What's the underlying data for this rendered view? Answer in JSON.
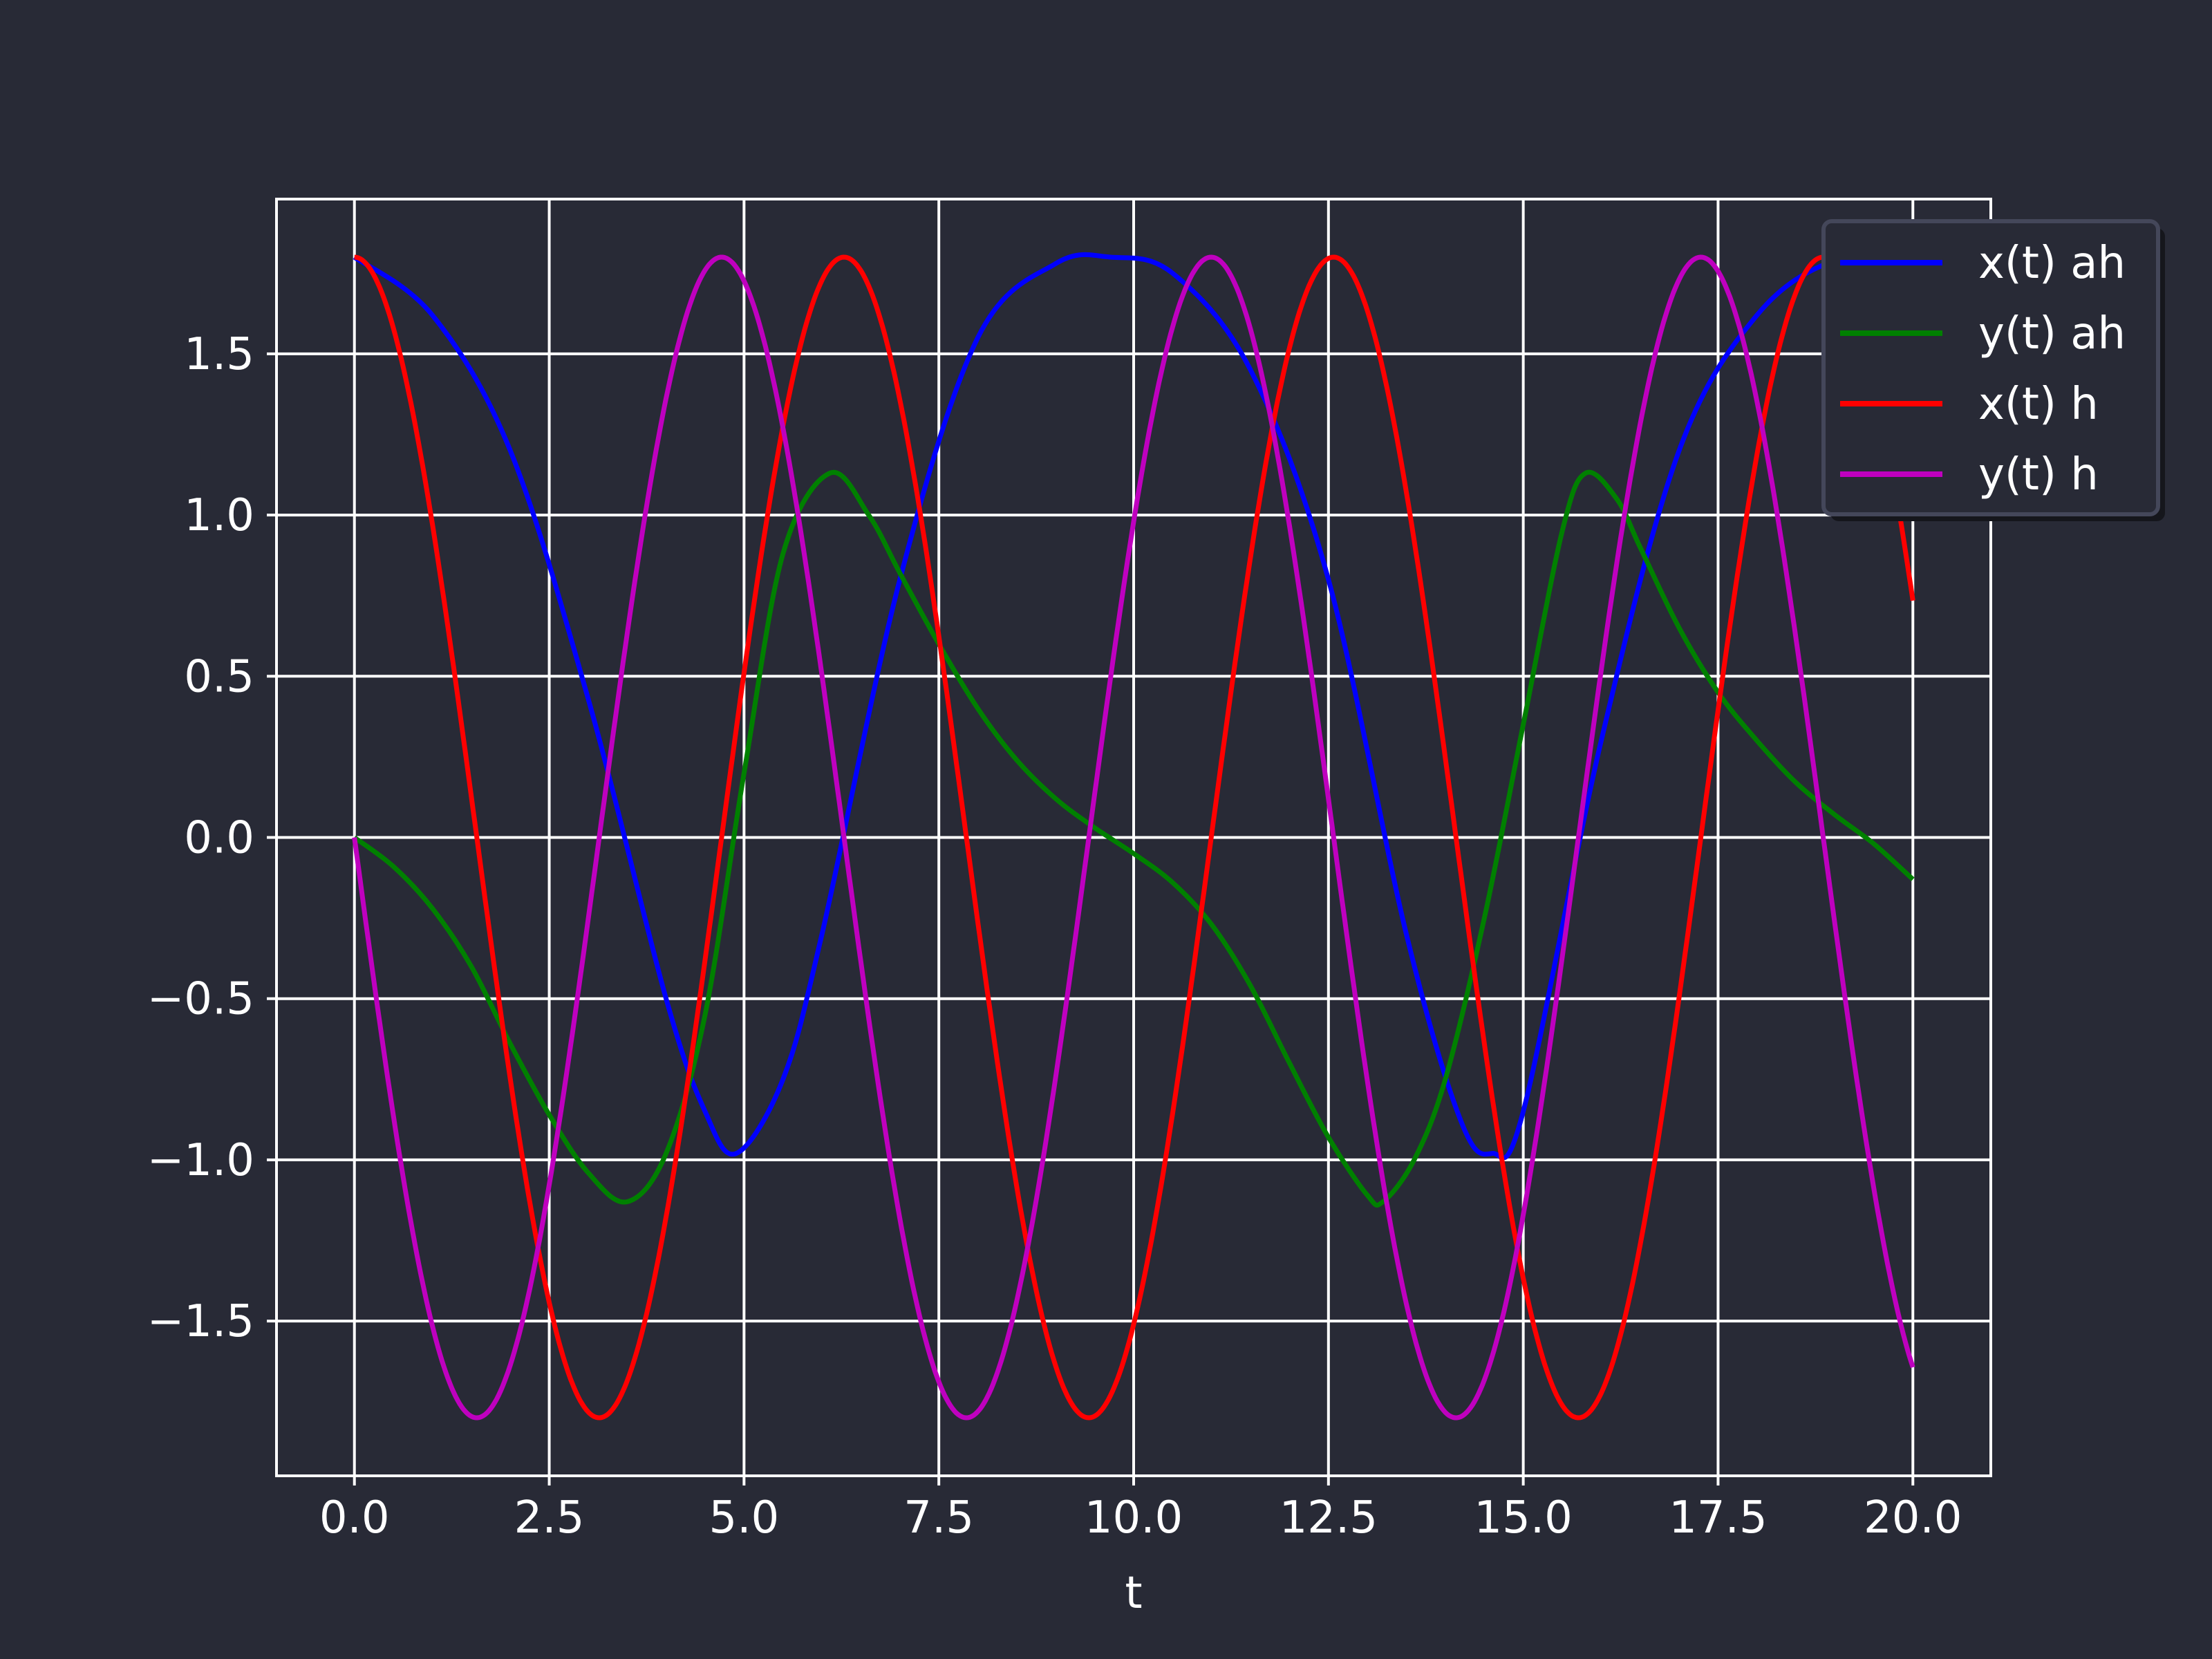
{
  "chart_data": {
    "type": "line",
    "title": "",
    "xlabel": "t",
    "ylabel": "",
    "xlim": [
      -1.0,
      21.0
    ],
    "ylim": [
      -1.98,
      1.98
    ],
    "grid": true,
    "legend_position": "top-right",
    "background_color": "#282a36",
    "axes_color": "#ffffff",
    "xticks": [
      0.0,
      2.5,
      5.0,
      7.5,
      10.0,
      12.5,
      15.0,
      17.5,
      20.0
    ],
    "xtick_labels": [
      "0.0",
      "2.5",
      "5.0",
      "7.5",
      "10.0",
      "12.5",
      "15.0",
      "17.5",
      "20.0"
    ],
    "yticks": [
      -1.5,
      -1.0,
      -0.5,
      0.0,
      0.5,
      1.0,
      1.5
    ],
    "ytick_labels": [
      "−1.5",
      "−1.0",
      "−0.5",
      "0.0",
      "0.5",
      "1.0",
      "1.5"
    ],
    "series": [
      {
        "name": "x(t) ah",
        "color": "#0000ff",
        "x": [
          0,
          1,
          2,
          3,
          4,
          4.5,
          4.9,
          5.5,
          6,
          7,
          8,
          9,
          9.7,
          10.5,
          11.5,
          12.5,
          13.5,
          14.2,
          14.6,
          15,
          16,
          17,
          18,
          19,
          20
        ],
        "y": [
          1.8,
          1.62,
          1.2,
          0.43,
          -0.5,
          -0.85,
          -0.98,
          -0.75,
          -0.3,
          0.8,
          1.55,
          1.78,
          1.8,
          1.75,
          1.45,
          0.8,
          -0.3,
          -0.88,
          -0.98,
          -0.85,
          0.3,
          1.2,
          1.62,
          1.79,
          1.8
        ]
      },
      {
        "name": "y(t) ah",
        "color": "#008000",
        "x": [
          0,
          0.5,
          1,
          1.5,
          2,
          2.5,
          3,
          3.5,
          4,
          4.5,
          5,
          5.5,
          6.1,
          6.6,
          7,
          7.5,
          8,
          8.5,
          9,
          9.5,
          10,
          10.5,
          11,
          11.5,
          12,
          12.5,
          13,
          13.2,
          13.6,
          14,
          14.5,
          15,
          15.5,
          15.8,
          16.2,
          16.5,
          17,
          17.5,
          18,
          18.5,
          19,
          19.5,
          20
        ],
        "y": [
          0,
          -0.09,
          -0.22,
          -0.4,
          -0.64,
          -0.86,
          -1.04,
          -1.13,
          -0.98,
          -0.55,
          0.2,
          0.88,
          1.13,
          1.0,
          0.82,
          0.6,
          0.4,
          0.24,
          0.12,
          0.03,
          -0.05,
          -0.14,
          -0.27,
          -0.46,
          -0.7,
          -0.93,
          -1.11,
          -1.13,
          -1.0,
          -0.75,
          -0.25,
          0.35,
          0.95,
          1.13,
          1.05,
          0.9,
          0.65,
          0.45,
          0.3,
          0.17,
          0.07,
          -0.02,
          -0.13
        ]
      },
      {
        "name": "x(t) h",
        "color": "#ff0000",
        "func": "cos",
        "amplitude": 1.8,
        "omega": 1.0,
        "t_range": [
          0,
          20
        ]
      },
      {
        "name": "y(t) h",
        "color": "#bf00bf",
        "func": "-sin",
        "amplitude": 1.8,
        "omega": 1.0,
        "t_range": [
          0,
          20
        ]
      }
    ]
  }
}
